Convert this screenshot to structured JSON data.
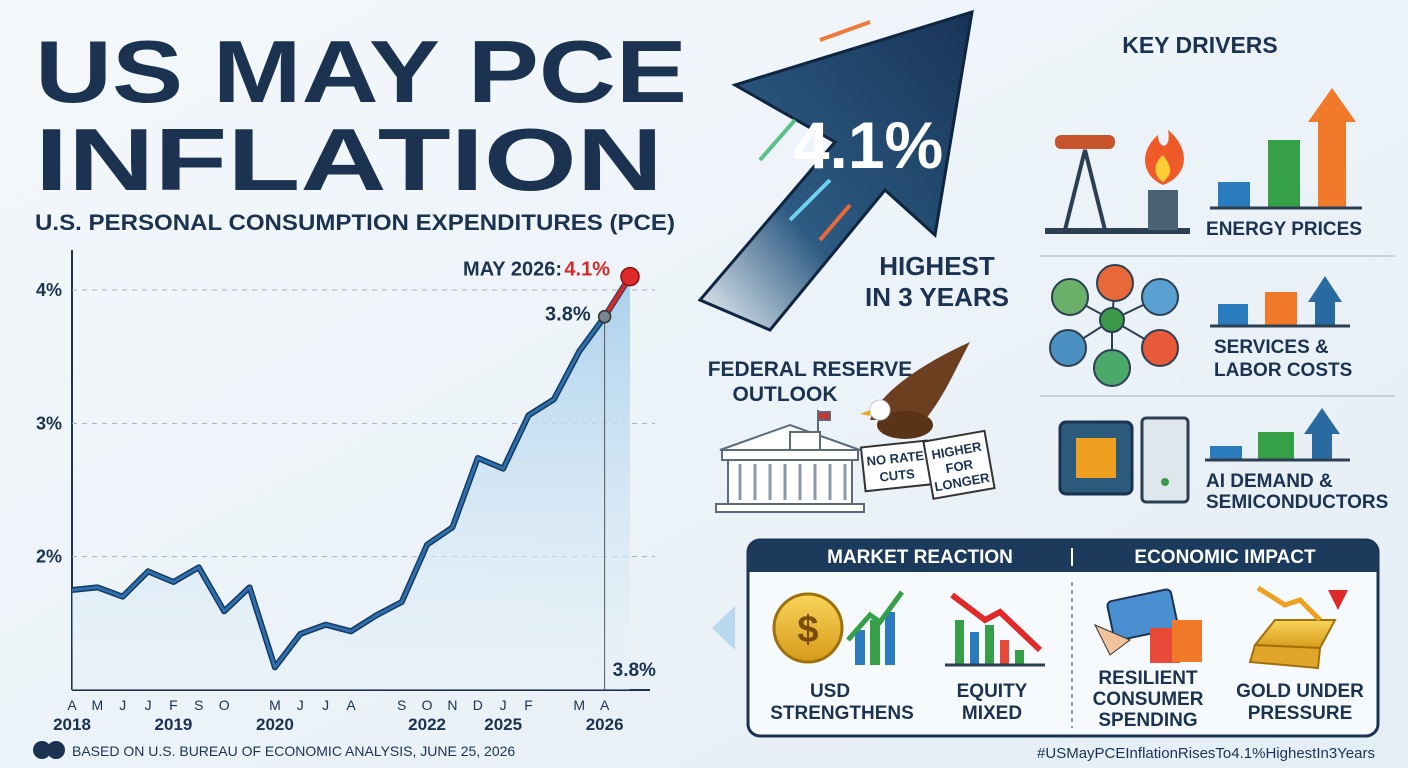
{
  "title": [
    "US MAY PCE",
    "INFLATION"
  ],
  "subtitle": "U.S. PERSONAL CONSUMPTION EXPENDITURES (PCE)",
  "chart_data": {
    "type": "line",
    "categories": [
      "A",
      "M",
      "J",
      "J",
      "F",
      "S",
      "O",
      null,
      "M",
      "J",
      "J",
      "A",
      null,
      "S",
      "O",
      "N",
      "D",
      "J",
      "F",
      null,
      "M",
      "A",
      null
    ],
    "year_labels": [
      "2018",
      null,
      null,
      null,
      "2019",
      null,
      null,
      null,
      "2020",
      null,
      null,
      null,
      null,
      null,
      "2022",
      null,
      null,
      "2025",
      null,
      null,
      null,
      "2026",
      null
    ],
    "series": [
      {
        "name": "PCE inflation",
        "color": "#2e6fb0",
        "values": [
          1.75,
          1.77,
          1.7,
          1.89,
          1.81,
          1.92,
          1.59,
          1.77,
          1.17,
          1.42,
          1.49,
          1.44,
          1.56,
          1.66,
          2.09,
          2.22,
          2.74,
          2.66,
          3.06,
          3.18,
          3.54,
          3.8,
          4.1
        ],
        "value_labels": [
          null,
          null,
          null,
          null,
          null,
          null,
          null,
          null,
          null,
          null,
          null,
          null,
          null,
          null,
          null,
          null,
          null,
          null,
          null,
          null,
          null,
          "3.8%",
          "4.1%"
        ]
      }
    ],
    "annotation": "MAY 2026:",
    "ylim": [
      1,
      4.3
    ],
    "yticks": [
      {
        "value": 2,
        "label": "2%"
      },
      {
        "value": 3,
        "label": "3%"
      },
      {
        "value": 4,
        "label": "4%"
      }
    ],
    "grid": true
  },
  "headline": {
    "value": "4.1%",
    "note": [
      "HIGHEST",
      "IN 3 YEARS"
    ]
  },
  "fed": {
    "title": [
      "FEDERAL RESERVE",
      "OUTLOOK"
    ],
    "signs": [
      [
        "NO RATE",
        "CUTS"
      ],
      [
        "HIGHER",
        "FOR",
        "LONGER"
      ]
    ]
  },
  "drivers": {
    "title": "KEY DRIVERS",
    "items": [
      [
        "ENERGY PRICES"
      ],
      [
        "SERVICES &",
        "LABOR COSTS"
      ],
      [
        "AI DEMAND &",
        "SEMICONDUCTORS"
      ]
    ]
  },
  "panel": {
    "headers": [
      "MARKET REACTION",
      "ECONOMIC IMPACT"
    ],
    "items": [
      [
        "USD",
        "STRENGTHENS"
      ],
      [
        "EQUITY",
        "MIXED"
      ],
      [
        "RESILIENT",
        "CONSUMER",
        "SPENDING"
      ],
      [
        "GOLD UNDER",
        "PRESSURE"
      ]
    ]
  },
  "footer": {
    "source": "BASED ON U.S. BUREAU OF ECONOMIC ANALYSIS, JUNE 25, 2026",
    "hashtag": "#USMayPCEInflationRisesTo4.1%HighestIn3Years"
  }
}
